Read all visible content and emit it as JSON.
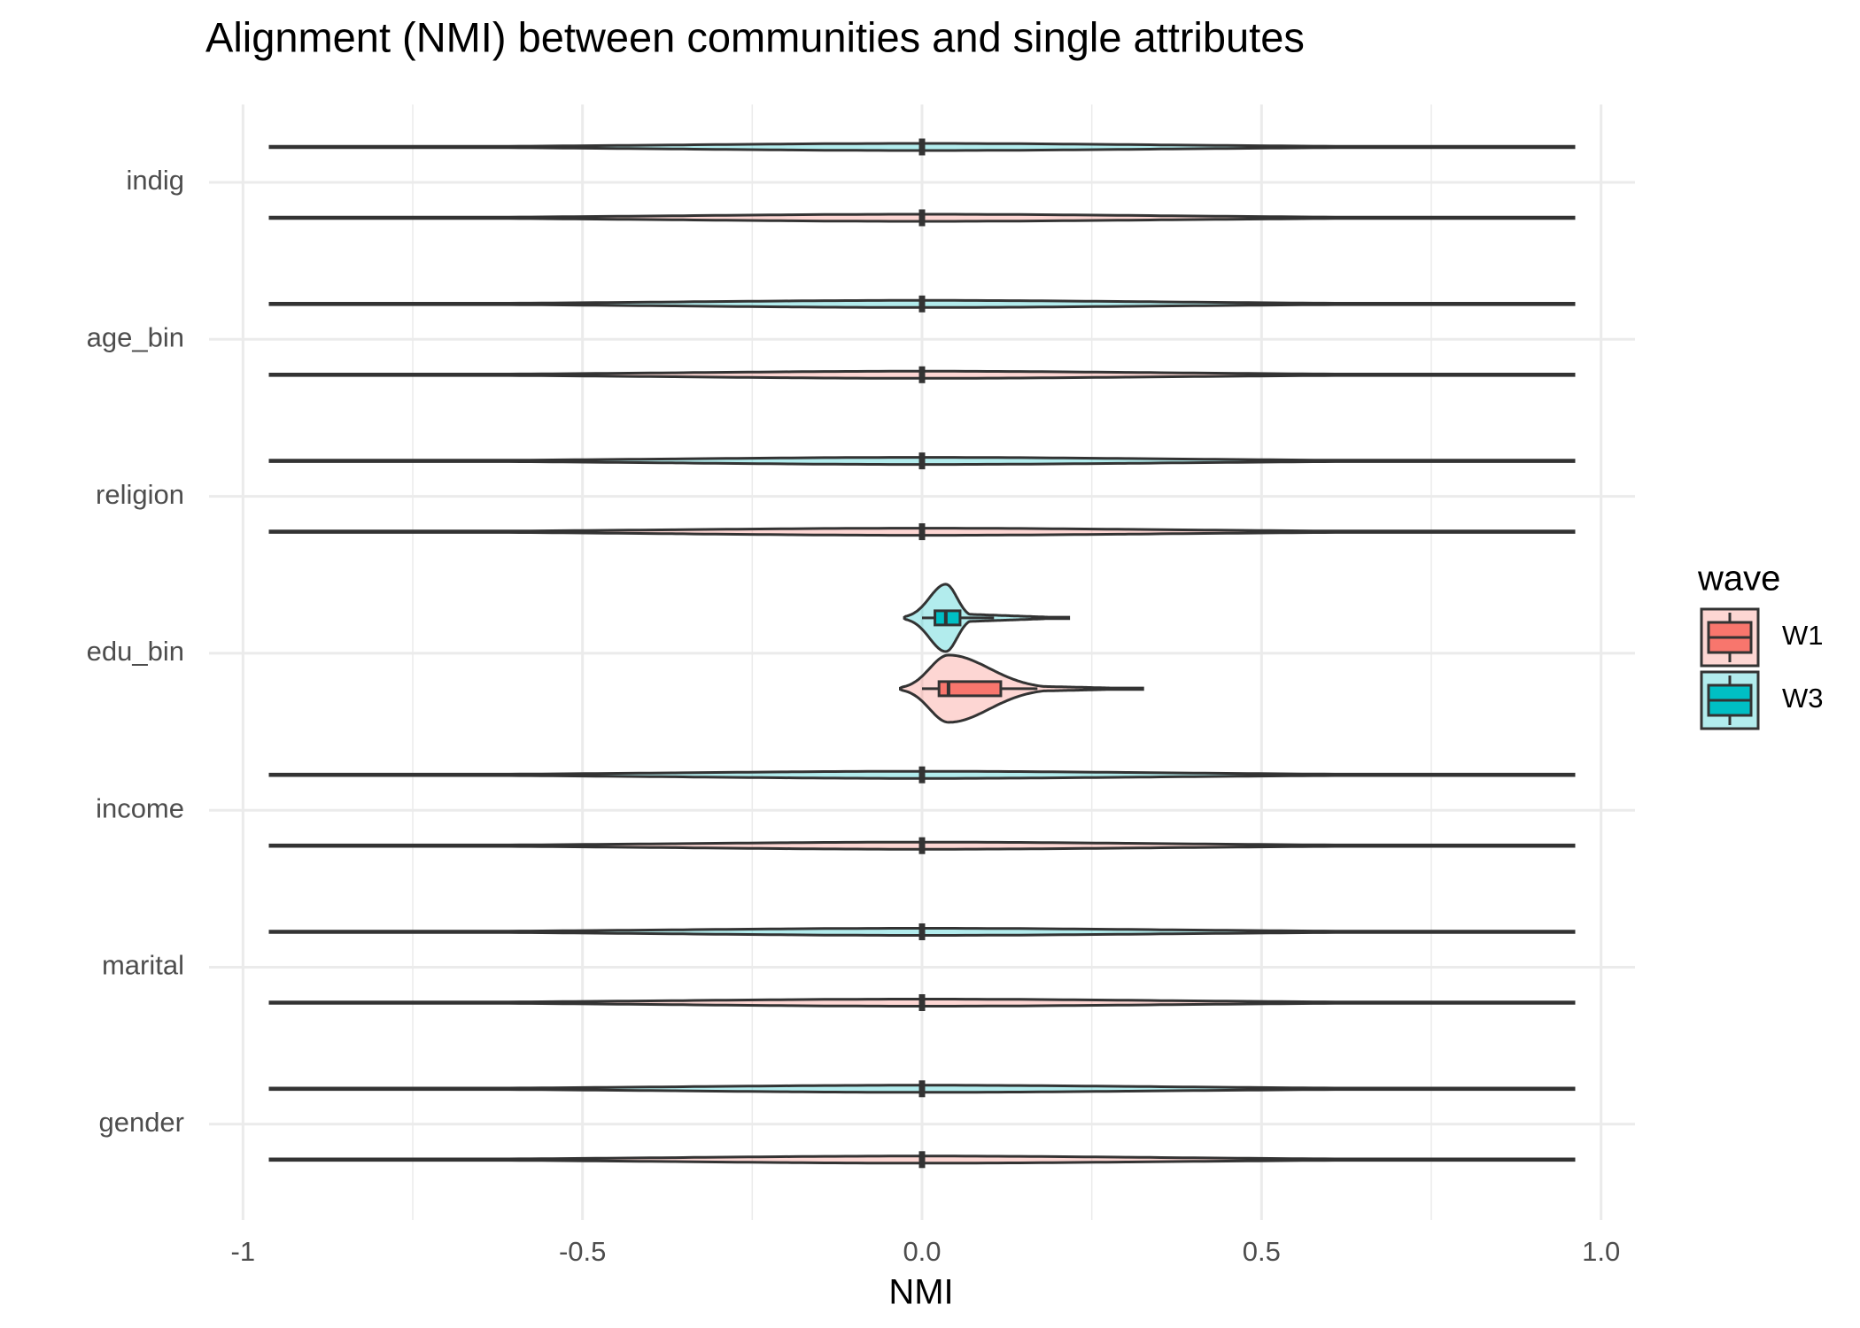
{
  "chart_data": {
    "type": "violin",
    "title": "Alignment (NMI) between communities and single attributes",
    "x_label": "NMI",
    "orientation": "horizontal",
    "categories": [
      "indig",
      "age_bin",
      "religion",
      "edu_bin",
      "income",
      "marital",
      "gender"
    ],
    "xlim": [
      -1.05,
      1.05
    ],
    "xticks": [
      -1,
      -0.5,
      {
        "value": 0,
        "label": "0.0"
      },
      0.5,
      {
        "value": 1,
        "label": "1.0"
      }
    ],
    "minor_xticks": [
      -0.75,
      -0.25,
      0.25,
      0.75
    ],
    "grid": true,
    "legend_title": "wave",
    "legend_position": "right",
    "series": [
      {
        "name": "W1",
        "color": "#F8766D",
        "values": [
          0,
          0,
          0,
          0.039,
          0,
          0,
          0
        ],
        "q1": [
          0,
          0,
          0,
          0.025,
          0,
          0,
          0
        ],
        "q3": [
          0,
          0,
          0,
          0.116,
          0,
          0,
          0
        ],
        "whisker_low": [
          0,
          0,
          0,
          0.0,
          0,
          0,
          0
        ],
        "whisker_high": [
          0,
          0,
          0,
          0.17,
          0,
          0,
          0
        ],
        "violin_min": [
          -0.96,
          -0.96,
          -0.96,
          -0.032,
          -0.96,
          -0.96,
          -0.96
        ],
        "violin_max": [
          0.96,
          0.96,
          0.96,
          0.325,
          0.96,
          0.96,
          0.96
        ]
      },
      {
        "name": "W3",
        "color": "#00BFC4",
        "values": [
          0,
          0,
          0,
          0.035,
          0,
          0,
          0
        ],
        "q1": [
          0,
          0,
          0,
          0.019,
          0,
          0,
          0
        ],
        "q3": [
          0,
          0,
          0,
          0.056,
          0,
          0,
          0
        ],
        "whisker_low": [
          0,
          0,
          0,
          0.0,
          0,
          0,
          0
        ],
        "whisker_high": [
          0,
          0,
          0,
          0.106,
          0,
          0,
          0
        ],
        "violin_min": [
          -0.96,
          -0.96,
          -0.96,
          -0.026,
          -0.96,
          -0.96,
          -0.96
        ],
        "violin_max": [
          0.96,
          0.96,
          0.96,
          0.216,
          0.96,
          0.96,
          0.96
        ]
      }
    ]
  }
}
